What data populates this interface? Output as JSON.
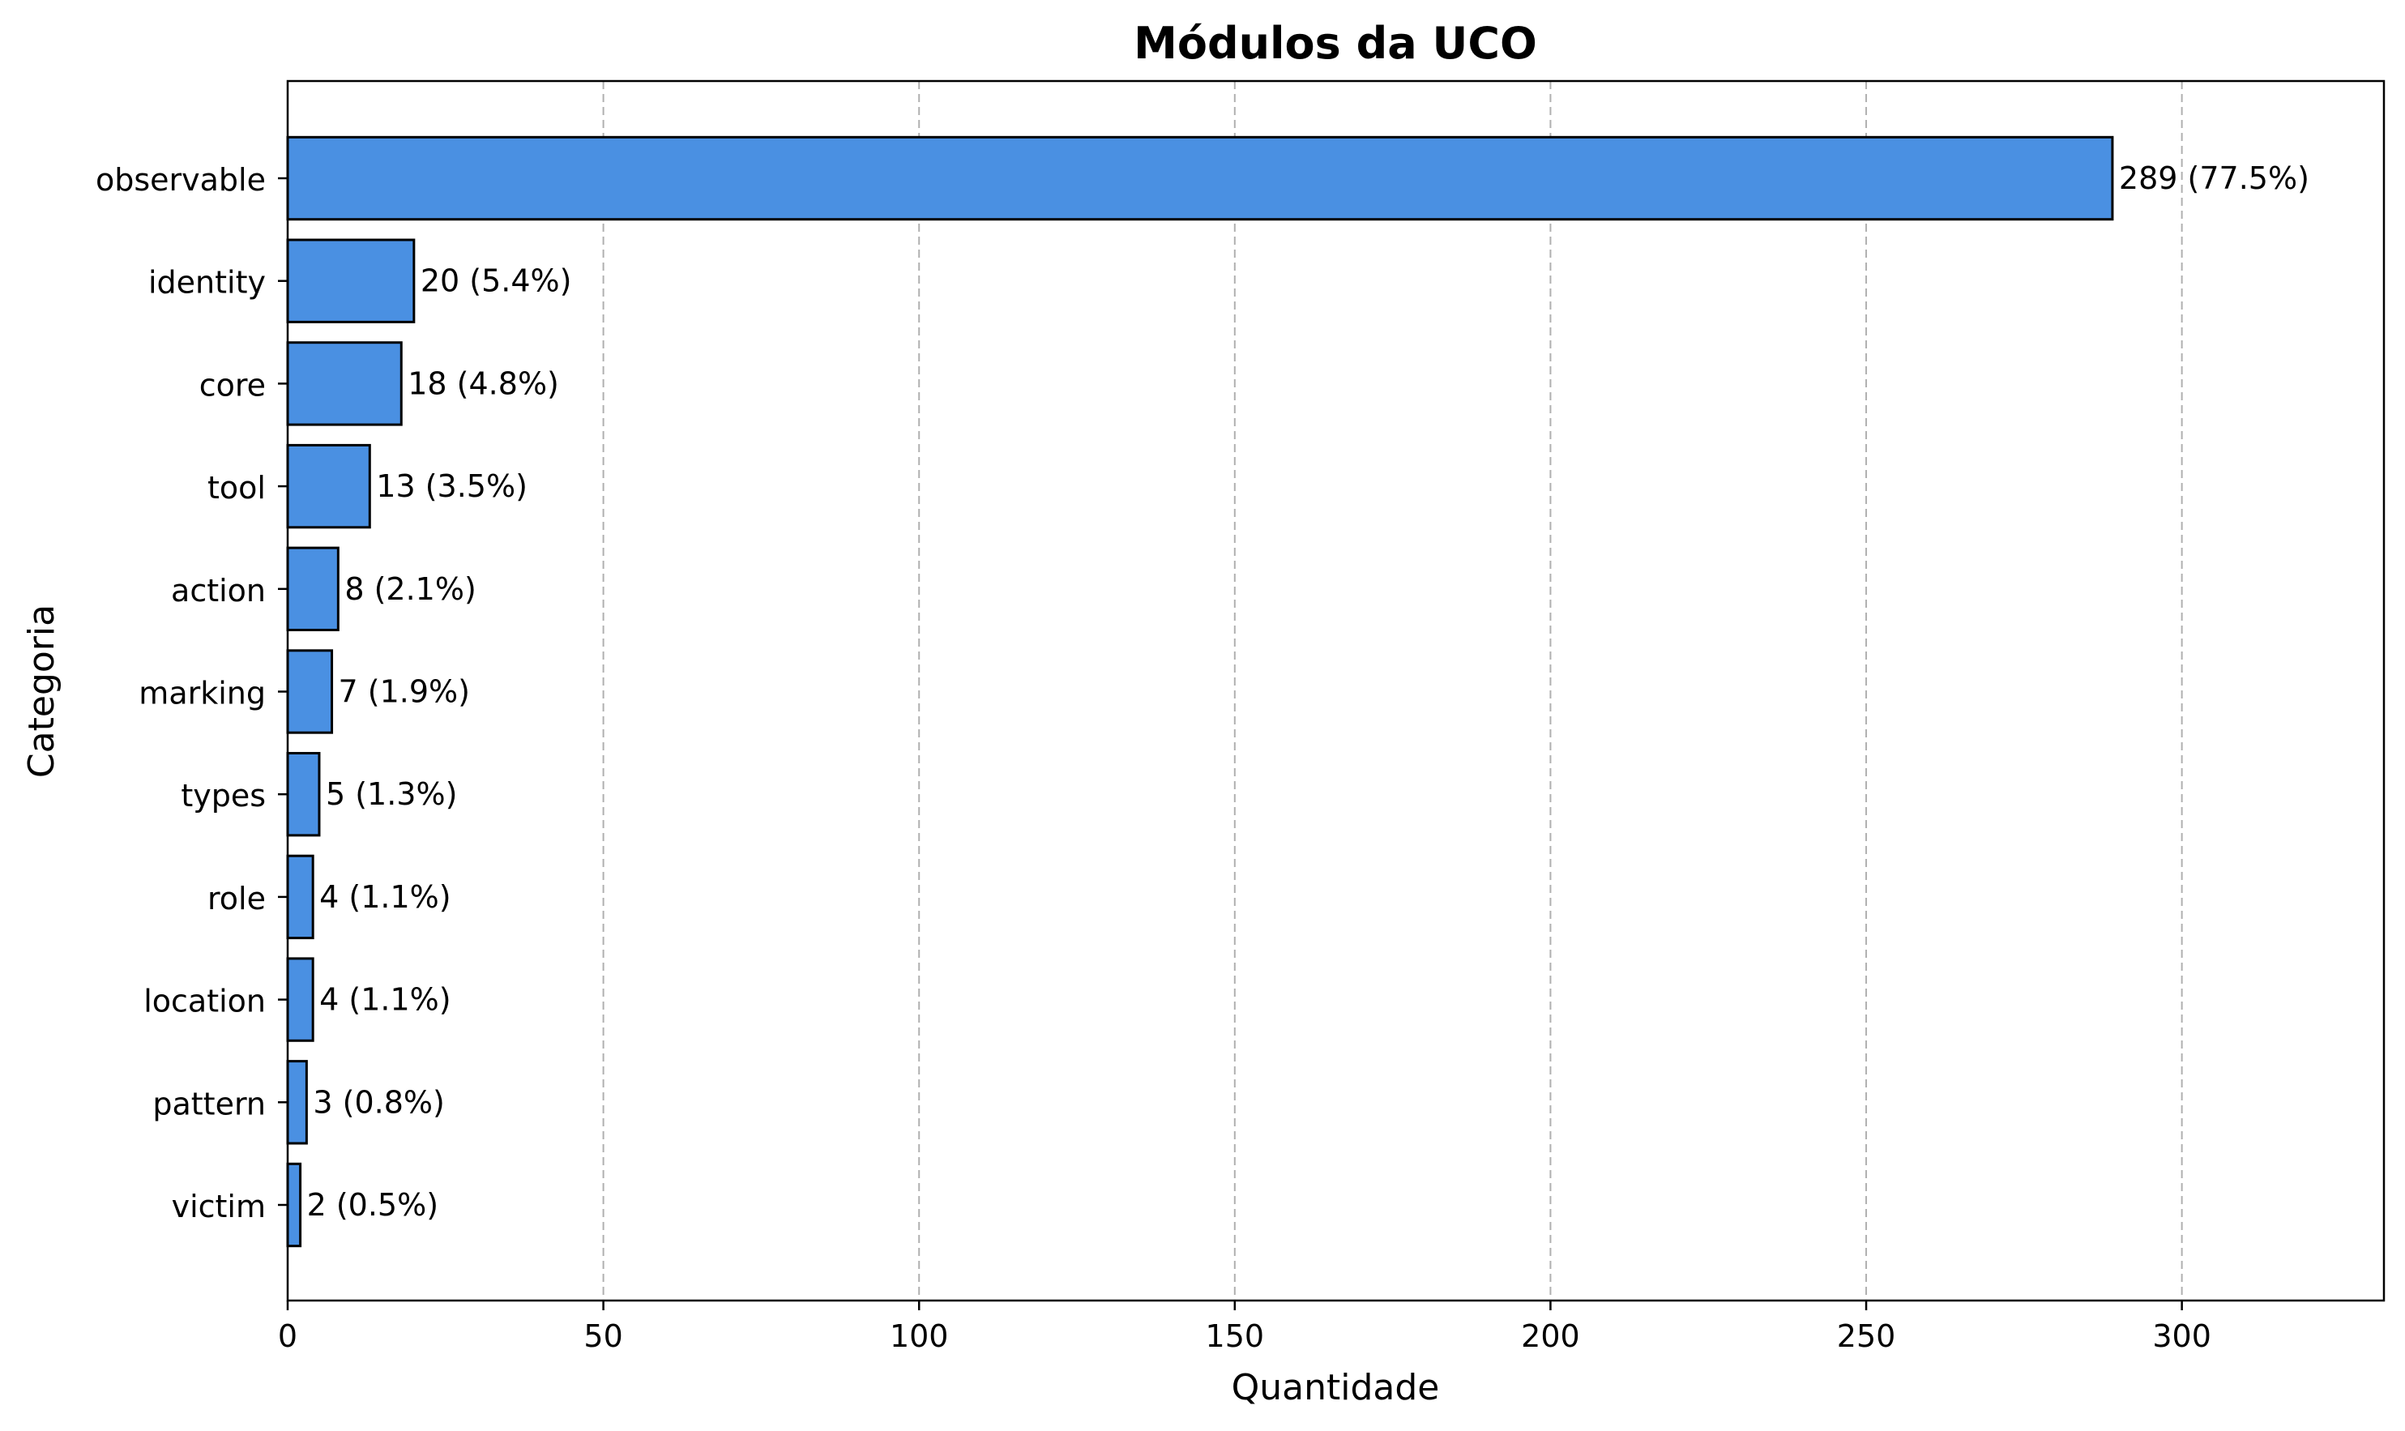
{
  "chart_data": {
    "type": "bar",
    "orientation": "horizontal",
    "title": "Módulos da UCO",
    "xlabel": "Quantidade",
    "ylabel": "Categoria",
    "xlim": [
      0,
      332
    ],
    "xticks": [
      0,
      50,
      100,
      150,
      200,
      250,
      300
    ],
    "grid": "x-dashed",
    "legend": "none",
    "bar_color": "#4a90e2",
    "edge_color": "#000000",
    "categories": [
      "observable",
      "identity",
      "core",
      "tool",
      "action",
      "marking",
      "types",
      "role",
      "location",
      "pattern",
      "victim"
    ],
    "values": [
      289,
      20,
      18,
      13,
      8,
      7,
      5,
      4,
      4,
      3,
      2
    ],
    "data_labels": [
      "289 (77.5%)",
      "20 (5.4%)",
      "18 (4.8%)",
      "13 (3.5%)",
      "8 (2.1%)",
      "7 (1.9%)",
      "5 (1.3%)",
      "4 (1.1%)",
      "4 (1.1%)",
      "3 (0.8%)",
      "2 (0.5%)"
    ]
  }
}
